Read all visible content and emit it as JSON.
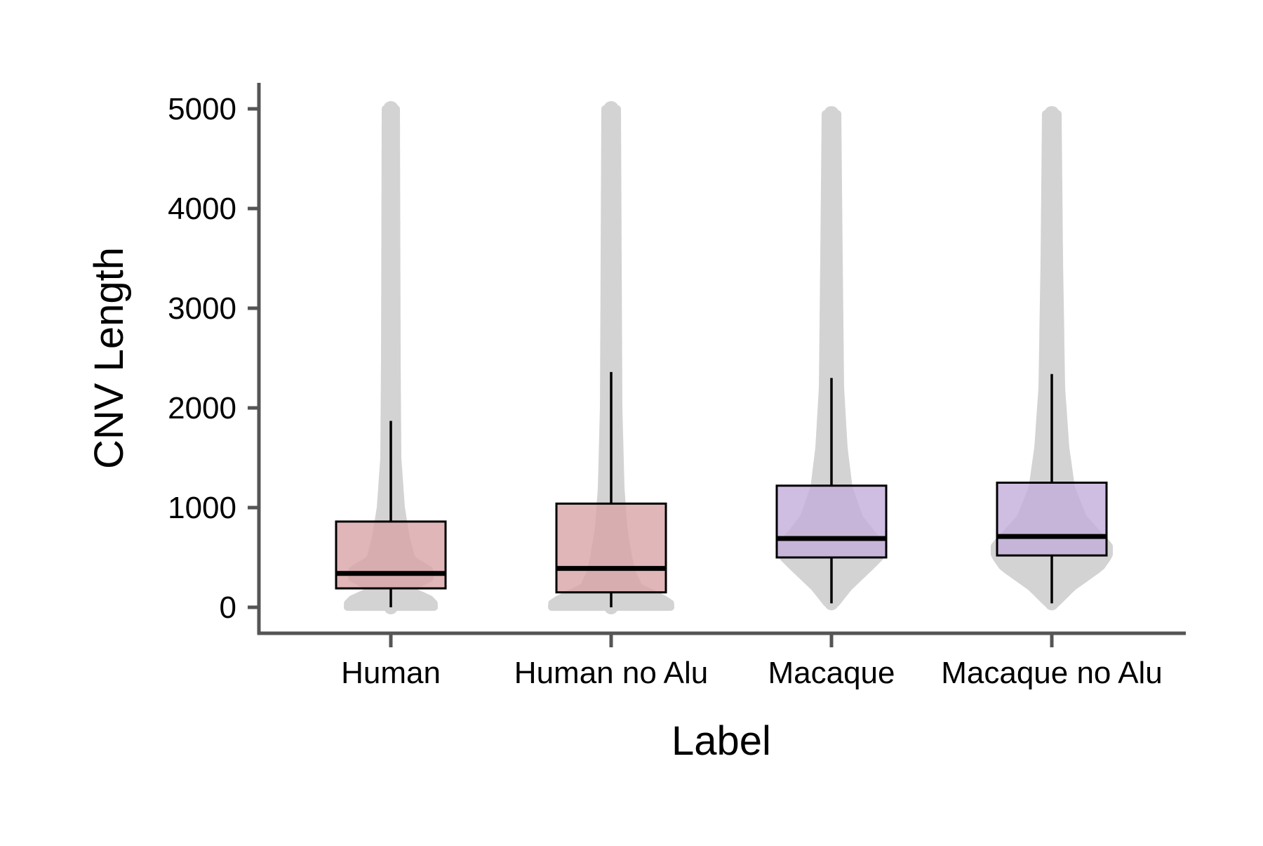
{
  "chart_data": {
    "type": "box",
    "xlabel": "Label",
    "ylabel": "CNV Length",
    "ylim": [
      -250,
      5250
    ],
    "yticks": [
      0,
      1000,
      2000,
      3000,
      4000,
      5000
    ],
    "ytick_labels": [
      "0",
      "1000",
      "2000",
      "3000",
      "4000",
      "5000"
    ],
    "categories": [
      "Human",
      "Human no Alu",
      "Macaque",
      "Macaque no Alu"
    ],
    "grid": false,
    "legend": "none",
    "box_fill_colors": [
      "#d9a4a8",
      "#d9a4a8",
      "#c3aedb",
      "#c3aedb"
    ],
    "background_point_color": "#d3d3d3",
    "boxes": [
      {
        "category": "Human",
        "whisker_low": 0,
        "q1": 190,
        "median": 340,
        "q3": 860,
        "whisker_high": 1870,
        "max_point": 5000,
        "min_point": 0
      },
      {
        "category": "Human no Alu",
        "whisker_low": 0,
        "q1": 150,
        "median": 390,
        "q3": 1040,
        "whisker_high": 2360,
        "max_point": 5000,
        "min_point": 0
      },
      {
        "category": "Macaque",
        "whisker_low": 40,
        "q1": 500,
        "median": 690,
        "q3": 1220,
        "whisker_high": 2300,
        "max_point": 4950,
        "min_point": 40
      },
      {
        "category": "Macaque no Alu",
        "whisker_low": 40,
        "q1": 520,
        "median": 710,
        "q3": 1250,
        "whisker_high": 2340,
        "max_point": 4950,
        "min_point": 40
      }
    ]
  }
}
